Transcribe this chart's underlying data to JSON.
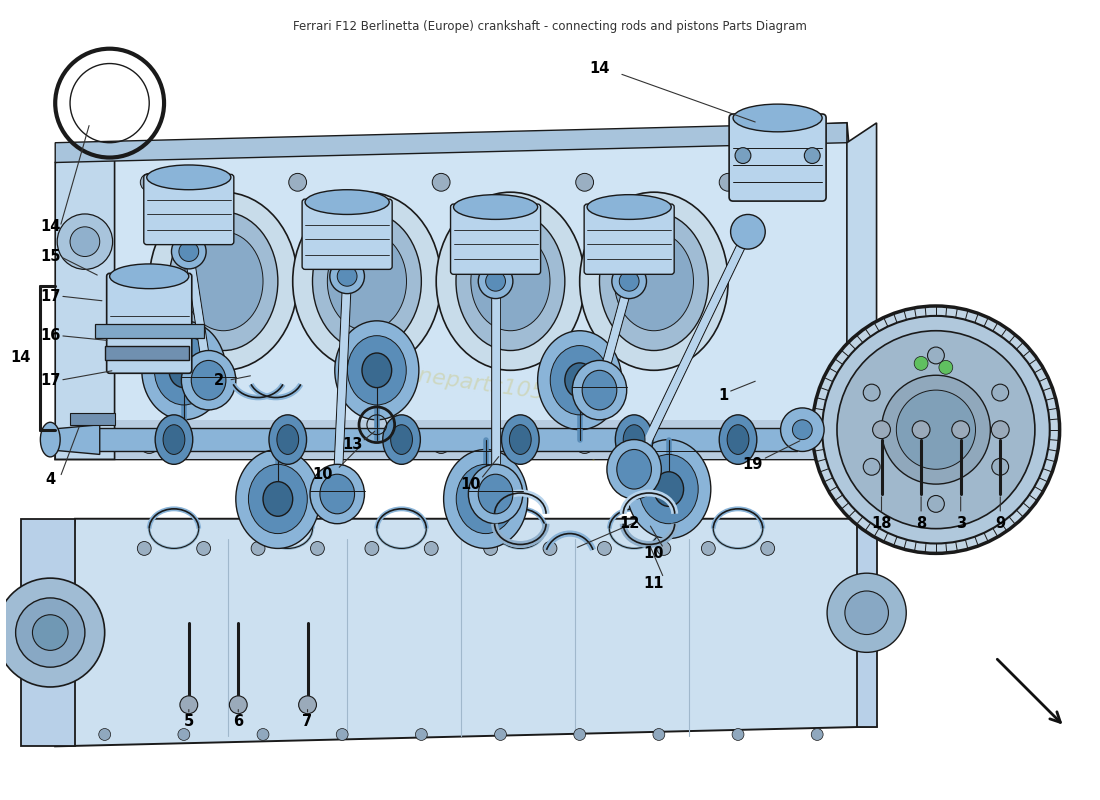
{
  "title": "Ferrari F12 Berlinetta (Europe) crankshaft - connecting rods and pistons Parts Diagram",
  "bg_color": "#ffffff",
  "part_fill_light": "#b8d4ec",
  "part_fill_mid": "#8ab4d8",
  "part_fill_dark": "#5a8db8",
  "part_fill_xdark": "#3a6a90",
  "block_fill": "#d0e4f4",
  "block_edge": "#2a2a2a",
  "outline": "#1a1a1a",
  "label_color": "#000000",
  "wm_color": "#c8b840",
  "wm_alpha": 0.28,
  "label_fs": 10.5,
  "figw": 11.0,
  "figh": 8.0,
  "dpi": 100
}
